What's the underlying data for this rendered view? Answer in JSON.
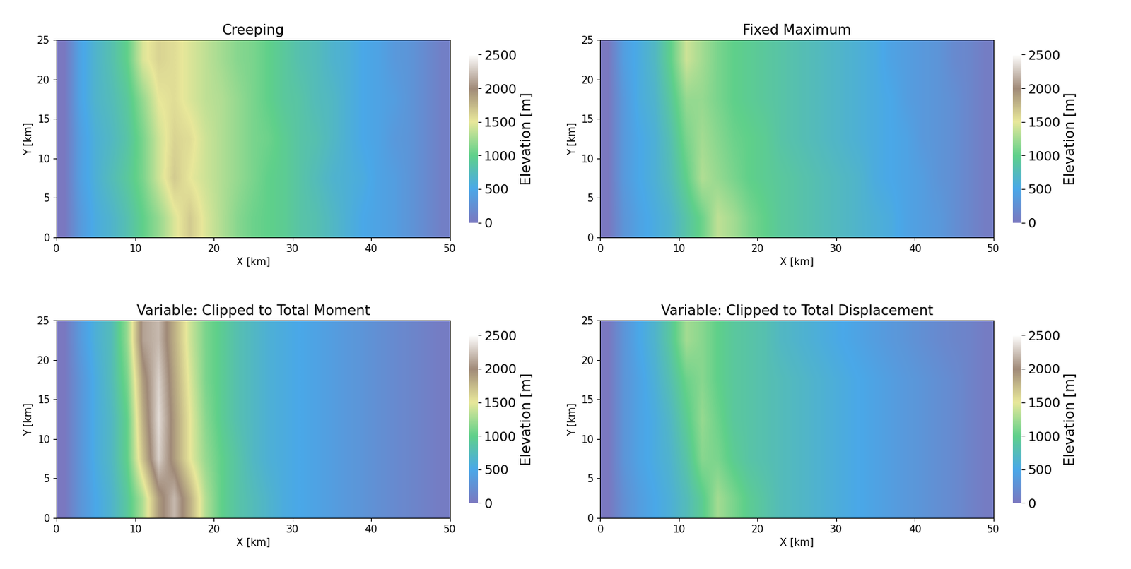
{
  "chart_data": [
    {
      "type": "heatmap",
      "title": "Creeping",
      "x_label": "X [km]",
      "y_label": "Y [km]",
      "xlim": [
        0,
        50
      ],
      "ylim": [
        0,
        25
      ],
      "xticks": [
        0,
        10,
        20,
        30,
        40,
        50
      ],
      "yticks": [
        0,
        5,
        10,
        15,
        20,
        25
      ],
      "colorbar": {
        "label": "Elevation [m]",
        "range": [
          0,
          2500
        ],
        "ticks": [
          0,
          500,
          1000,
          1500,
          2000,
          2500
        ]
      },
      "cells": [
        [
          0,
          350,
          550,
          650,
          800,
          1000,
          1200,
          1450,
          1650,
          1450,
          1300,
          1150,
          1050,
          1000,
          950,
          850,
          800,
          700,
          600,
          500,
          450,
          400,
          300,
          200,
          80
        ],
        [
          0,
          400,
          600,
          750,
          900,
          1100,
          1400,
          1650,
          1500,
          1400,
          1300,
          1200,
          1100,
          1000,
          950,
          850,
          750,
          650,
          600,
          550,
          450,
          400,
          300,
          200,
          80
        ],
        [
          0,
          400,
          600,
          700,
          850,
          1100,
          1400,
          1600,
          1550,
          1400,
          1300,
          1200,
          1100,
          1050,
          950,
          850,
          800,
          700,
          600,
          500,
          450,
          350,
          300,
          200,
          80
        ],
        [
          0,
          450,
          650,
          750,
          900,
          1200,
          1500,
          1550,
          1450,
          1350,
          1300,
          1200,
          1100,
          1000,
          900,
          850,
          750,
          700,
          600,
          500,
          450,
          400,
          300,
          200,
          80
        ],
        [
          0,
          450,
          650,
          800,
          1000,
          1450,
          1600,
          1550,
          1450,
          1350,
          1250,
          1150,
          1100,
          1000,
          900,
          800,
          750,
          650,
          600,
          500,
          450,
          350,
          300,
          200,
          80
        ]
      ]
    },
    {
      "type": "heatmap",
      "title": "Fixed Maximum",
      "x_label": "X [km]",
      "y_label": "Y [km]",
      "xlim": [
        0,
        50
      ],
      "ylim": [
        0,
        25
      ],
      "xticks": [
        0,
        10,
        20,
        30,
        40,
        50
      ],
      "yticks": [
        0,
        5,
        10,
        15,
        20,
        25
      ],
      "colorbar": {
        "label": "Elevation [m]",
        "range": [
          0,
          2500
        ],
        "ticks": [
          0,
          500,
          1000,
          1500,
          2000,
          2500
        ]
      },
      "cells": [
        [
          0,
          300,
          450,
          550,
          650,
          850,
          1050,
          1350,
          1250,
          1100,
          1000,
          900,
          850,
          800,
          750,
          700,
          650,
          600,
          550,
          450,
          400,
          350,
          250,
          150,
          60
        ],
        [
          0,
          350,
          500,
          600,
          750,
          1000,
          1300,
          1200,
          1100,
          1000,
          950,
          900,
          850,
          800,
          750,
          700,
          650,
          550,
          500,
          450,
          400,
          300,
          250,
          150,
          60
        ],
        [
          0,
          350,
          500,
          600,
          800,
          1100,
          1250,
          1150,
          1050,
          1000,
          950,
          850,
          800,
          750,
          700,
          650,
          600,
          550,
          500,
          450,
          350,
          300,
          250,
          150,
          60
        ],
        [
          0,
          350,
          550,
          650,
          900,
          1200,
          1200,
          1100,
          1000,
          950,
          900,
          850,
          800,
          750,
          700,
          650,
          600,
          550,
          500,
          400,
          350,
          300,
          250,
          150,
          60
        ],
        [
          0,
          400,
          550,
          700,
          1000,
          1400,
          1250,
          1100,
          1000,
          950,
          900,
          850,
          800,
          750,
          700,
          650,
          600,
          550,
          450,
          400,
          350,
          300,
          200,
          150,
          60
        ]
      ]
    },
    {
      "type": "heatmap",
      "title": "Variable: Clipped to Total Moment",
      "x_label": "X [km]",
      "y_label": "Y [km]",
      "xlim": [
        0,
        50
      ],
      "ylim": [
        0,
        25
      ],
      "xticks": [
        0,
        10,
        20,
        30,
        40,
        50
      ],
      "yticks": [
        0,
        5,
        10,
        15,
        20,
        25
      ],
      "colorbar": {
        "label": "Elevation [m]",
        "range": [
          0,
          2500
        ],
        "ticks": [
          0,
          500,
          1000,
          1500,
          2000,
          2500
        ]
      },
      "cells": [
        [
          0,
          300,
          500,
          650,
          900,
          1300,
          1900,
          2200,
          1800,
          1300,
          1000,
          850,
          750,
          650,
          550,
          500,
          450,
          400,
          350,
          300,
          250,
          200,
          150,
          100,
          50
        ],
        [
          0,
          300,
          550,
          700,
          1000,
          1700,
          2300,
          1900,
          1500,
          1200,
          1000,
          850,
          700,
          600,
          550,
          500,
          450,
          400,
          350,
          300,
          250,
          200,
          150,
          100,
          50
        ],
        [
          0,
          300,
          550,
          700,
          1000,
          1800,
          2350,
          1900,
          1500,
          1150,
          950,
          800,
          700,
          600,
          550,
          500,
          450,
          400,
          350,
          300,
          250,
          200,
          150,
          100,
          50
        ],
        [
          0,
          300,
          550,
          750,
          1100,
          1900,
          2300,
          1850,
          1450,
          1100,
          950,
          800,
          700,
          600,
          550,
          500,
          450,
          400,
          350,
          300,
          250,
          200,
          150,
          100,
          50
        ],
        [
          0,
          350,
          600,
          750,
          1200,
          2100,
          2200,
          1800,
          1400,
          1100,
          950,
          800,
          700,
          600,
          550,
          500,
          450,
          400,
          350,
          300,
          250,
          200,
          150,
          100,
          50
        ]
      ]
    },
    {
      "type": "heatmap",
      "title": "Variable: Clipped to Total Displacement",
      "x_label": "X [km]",
      "y_label": "Y [km]",
      "xlim": [
        0,
        50
      ],
      "ylim": [
        0,
        25
      ],
      "xticks": [
        0,
        10,
        20,
        30,
        40,
        50
      ],
      "yticks": [
        0,
        5,
        10,
        15,
        20,
        25
      ],
      "colorbar": {
        "label": "Elevation [m]",
        "range": [
          0,
          2500
        ],
        "ticks": [
          0,
          500,
          1000,
          1500,
          2000,
          2500
        ]
      },
      "cells": [
        [
          0,
          250,
          400,
          500,
          600,
          750,
          950,
          1250,
          1100,
          950,
          850,
          750,
          700,
          650,
          600,
          550,
          500,
          450,
          400,
          350,
          300,
          250,
          200,
          120,
          50
        ],
        [
          0,
          300,
          450,
          550,
          650,
          850,
          1150,
          1100,
          950,
          850,
          800,
          750,
          700,
          650,
          600,
          550,
          500,
          450,
          400,
          350,
          300,
          250,
          200,
          120,
          50
        ],
        [
          0,
          300,
          450,
          550,
          700,
          950,
          1200,
          1050,
          900,
          850,
          800,
          750,
          700,
          650,
          600,
          550,
          500,
          450,
          400,
          350,
          300,
          250,
          200,
          120,
          50
        ],
        [
          0,
          300,
          450,
          600,
          800,
          1050,
          1150,
          1000,
          900,
          850,
          800,
          750,
          700,
          650,
          600,
          550,
          500,
          450,
          400,
          350,
          300,
          250,
          200,
          120,
          50
        ],
        [
          0,
          300,
          500,
          650,
          900,
          1250,
          1150,
          1000,
          900,
          850,
          800,
          700,
          650,
          600,
          550,
          500,
          450,
          400,
          350,
          300,
          250,
          200,
          150,
          120,
          50
        ]
      ]
    }
  ]
}
